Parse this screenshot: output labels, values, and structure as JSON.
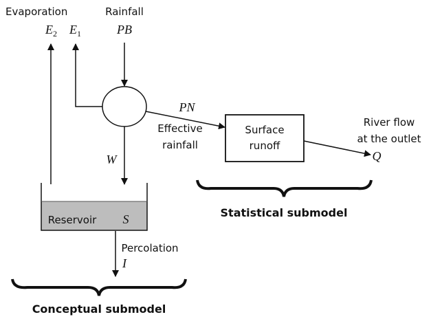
{
  "labels": {
    "evaporation": "Evaporation",
    "e2": {
      "base": "E",
      "sub": "2"
    },
    "e1": {
      "base": "E",
      "sub": "1"
    },
    "rainfall": "Rainfall",
    "pb": "PB",
    "pn": "PN",
    "effective_rainfall": [
      "Effective",
      "rainfall"
    ],
    "w": "W",
    "surface_runoff": [
      "Surface",
      "runoff"
    ],
    "river_flow": [
      "River flow",
      "at the outlet"
    ],
    "q": "Q",
    "reservoir": "Reservoir",
    "s": "S",
    "percolation": "Percolation",
    "i": "I",
    "conceptual": "Conceptual submodel",
    "statistical": "Statistical submodel"
  }
}
